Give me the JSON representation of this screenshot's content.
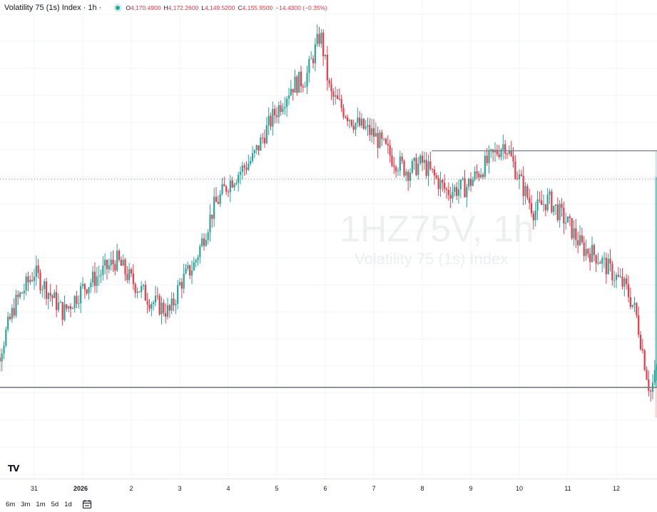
{
  "header": {
    "symbol": "Volatility 75 (1s) Index · 1h ·",
    "open_label": "O",
    "open": "4,170.4900",
    "high_label": "H",
    "high": "4,172.2600",
    "low_label": "L",
    "low": "4,149.5200",
    "close_label": "C",
    "close": "4,155.9500",
    "change": "−14.4300 (−0.35%)"
  },
  "watermark": {
    "symbol": "1HZ75V, 1h",
    "name": "Volatility 75 (1s) Index"
  },
  "logo_text": "TV",
  "bottom_bar": {
    "timeframes": [
      "6m",
      "3m",
      "1m",
      "5d",
      "1d"
    ],
    "calendar_icon": "calendar-range-icon"
  },
  "colors": {
    "up": "#26a69a",
    "down": "#f23645",
    "profit_zone": "#26a69a",
    "loss_zone": "#f7b7bb",
    "level_line": "#787b86"
  },
  "chart_data": {
    "type": "candlestick",
    "instrument": "Volatility 75 (1s) Index",
    "interval": "1h",
    "x_tick_labels": [
      "31",
      "2026",
      "2",
      "3",
      "4",
      "5",
      "6",
      "7",
      "8",
      "9",
      "10",
      "11",
      "12"
    ],
    "last_bar": {
      "open": 4170.49,
      "high": 4172.26,
      "low": 4149.52,
      "close": 4155.95,
      "change": -14.43,
      "change_pct": -0.35
    },
    "y_relative_range": [
      0,
      100
    ],
    "path_keypoints": [
      {
        "day": 30.0,
        "v": 7
      },
      {
        "day": 30.6,
        "v": 30
      },
      {
        "day": 31.0,
        "v": 38
      },
      {
        "day": 31.6,
        "v": 28
      },
      {
        "day": 32.0,
        "v": 34
      },
      {
        "day": 32.7,
        "v": 41
      },
      {
        "day": 33.0,
        "v": 36
      },
      {
        "day": 33.4,
        "v": 31
      },
      {
        "day": 33.8,
        "v": 28
      },
      {
        "day": 34.0,
        "v": 35
      },
      {
        "day": 34.3,
        "v": 40
      },
      {
        "day": 34.7,
        "v": 54
      },
      {
        "day": 35.0,
        "v": 60
      },
      {
        "day": 35.5,
        "v": 66
      },
      {
        "day": 35.9,
        "v": 76
      },
      {
        "day": 36.3,
        "v": 84
      },
      {
        "day": 36.6,
        "v": 86
      },
      {
        "day": 36.9,
        "v": 97
      },
      {
        "day": 37.1,
        "v": 82
      },
      {
        "day": 37.6,
        "v": 75
      },
      {
        "day": 38.0,
        "v": 72
      },
      {
        "day": 38.4,
        "v": 66
      },
      {
        "day": 38.7,
        "v": 63
      },
      {
        "day": 39.0,
        "v": 65
      },
      {
        "day": 39.5,
        "v": 58
      },
      {
        "day": 39.9,
        "v": 59
      },
      {
        "day": 40.4,
        "v": 66
      },
      {
        "day": 40.7,
        "v": 70
      },
      {
        "day": 41.0,
        "v": 61
      },
      {
        "day": 41.3,
        "v": 53
      },
      {
        "day": 41.6,
        "v": 56
      },
      {
        "day": 42.0,
        "v": 50
      },
      {
        "day": 42.3,
        "v": 44
      },
      {
        "day": 42.6,
        "v": 42
      },
      {
        "day": 42.9,
        "v": 38
      },
      {
        "day": 43.2,
        "v": 34
      },
      {
        "day": 43.4,
        "v": 28
      },
      {
        "day": 43.7,
        "v": 8
      },
      {
        "day": 43.9,
        "v": 17
      },
      {
        "day": 44.2,
        "v": 26
      },
      {
        "day": 44.5,
        "v": 32
      },
      {
        "day": 44.8,
        "v": 40
      },
      {
        "day": 45.0,
        "v": 46
      },
      {
        "day": 45.3,
        "v": 55
      },
      {
        "day": 45.6,
        "v": 63
      },
      {
        "day": 45.9,
        "v": 66
      }
    ],
    "horizontal_levels": [
      {
        "name": "resistance-line",
        "v": 68,
        "from_day": 39.2,
        "to_day": 46.0
      },
      {
        "name": "support-line",
        "v": 9.5,
        "from_day": 30.0,
        "to_day": 45.7
      },
      {
        "name": "current-price-line",
        "v": 61,
        "style": "dotted"
      }
    ],
    "position_tool": {
      "from_day": 43.8,
      "to_day": 45.7,
      "entry_v": 9.5,
      "target_v": 68,
      "stop_v": 2
    }
  }
}
